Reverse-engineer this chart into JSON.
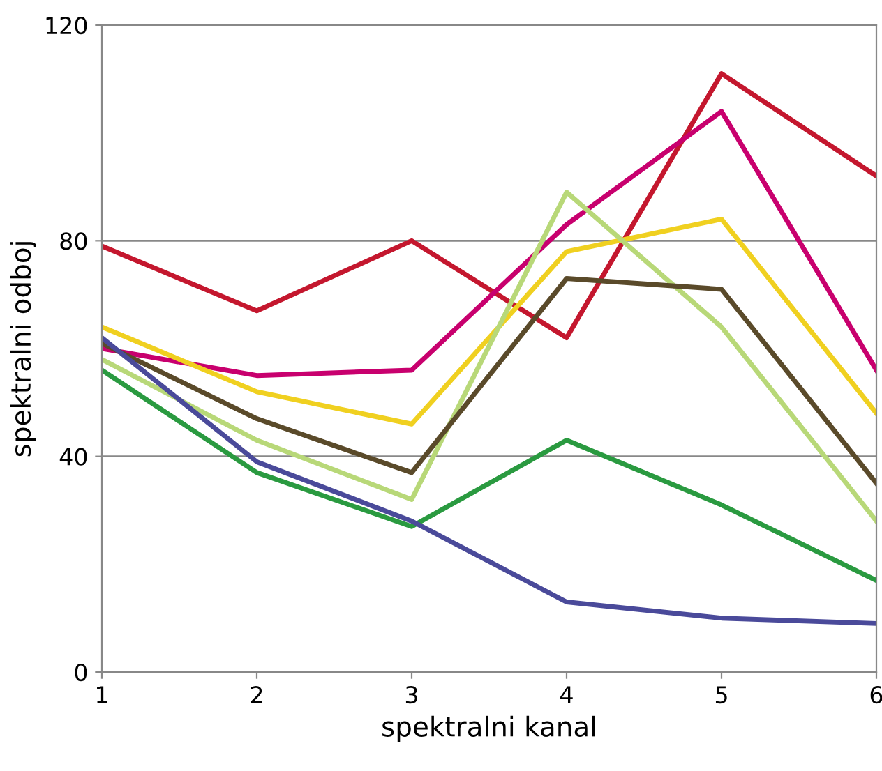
{
  "chart_data": {
    "type": "line",
    "xlabel": "spektralni kanal",
    "ylabel": "spektralni odboj",
    "x": [
      1,
      2,
      3,
      4,
      5,
      6
    ],
    "xlim": [
      1,
      6
    ],
    "xticks": [
      1,
      2,
      3,
      4,
      5,
      6
    ],
    "ylim": [
      0,
      120
    ],
    "yticks": [
      0,
      40,
      80,
      120
    ],
    "grid": "y",
    "marker": "none",
    "line_style": "solid",
    "series": [
      {
        "color": "#c4172e",
        "values": [
          79,
          67,
          80,
          62,
          111,
          92
        ]
      },
      {
        "color": "#c8006e",
        "values": [
          60,
          55,
          56,
          83,
          104,
          56
        ]
      },
      {
        "color": "#f0d020",
        "values": [
          64,
          52,
          46,
          78,
          84,
          48
        ]
      },
      {
        "color": "#b8d878",
        "values": [
          58,
          43,
          32,
          89,
          64,
          28
        ]
      },
      {
        "color": "#5a4a2a",
        "values": [
          61,
          47,
          37,
          73,
          71,
          35
        ]
      },
      {
        "color": "#2a9a40",
        "values": [
          56,
          37,
          27,
          43,
          31,
          17
        ]
      },
      {
        "color": "#4a4a9a",
        "values": [
          62,
          39,
          28,
          13,
          10,
          9
        ]
      }
    ]
  }
}
